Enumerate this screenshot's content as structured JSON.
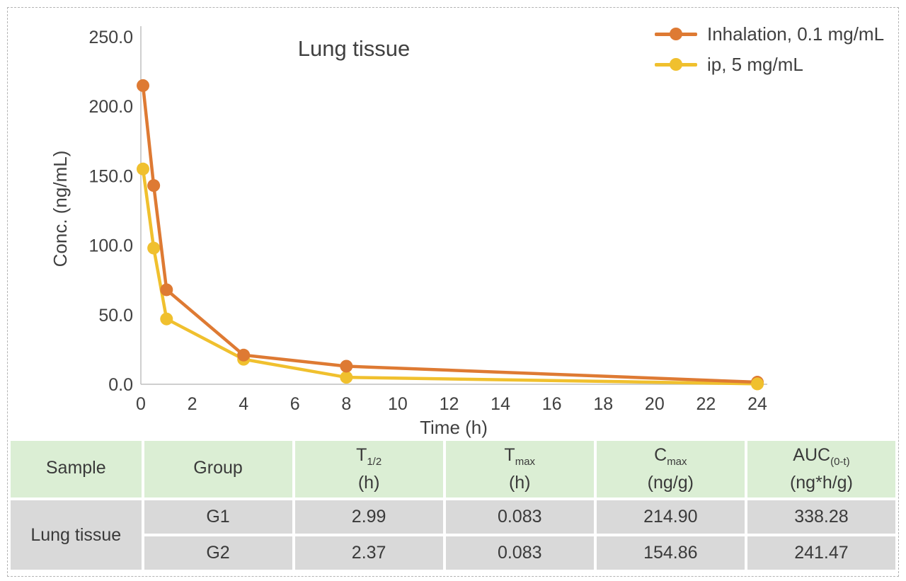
{
  "frame": {
    "border_color": "#b3b3b3"
  },
  "chart": {
    "axis_color": "#bfbfbf",
    "text_color": "#404040",
    "x_ticks": [
      0,
      2,
      4,
      6,
      8,
      10,
      12,
      14,
      16,
      18,
      20,
      22,
      24
    ],
    "y_ticks": [
      {
        "value": 0,
        "label": "0.0"
      },
      {
        "value": 50,
        "label": "50.0"
      },
      {
        "value": 100,
        "label": "100.0"
      },
      {
        "value": 150,
        "label": "150.0"
      },
      {
        "value": 200,
        "label": "200.0"
      },
      {
        "value": 250,
        "label": "250.0"
      }
    ]
  },
  "chart_data": {
    "type": "line",
    "title": "Lung tissue",
    "xlabel": "Time (h)",
    "ylabel": "Conc. (ng/mL)",
    "x": [
      0.083,
      0.5,
      1,
      4,
      8,
      24
    ],
    "series": [
      {
        "name": "Inhalation, 0.1 mg/mL",
        "color": "#de7a33",
        "values": [
          214.9,
          143,
          68,
          21,
          13,
          1.5
        ]
      },
      {
        "name": "ip, 5 mg/mL",
        "color": "#f0c02e",
        "values": [
          154.9,
          98,
          47,
          18,
          5,
          0.3
        ]
      }
    ],
    "xlim": [
      0,
      24
    ],
    "ylim": [
      0,
      250
    ],
    "grid": false,
    "legend_position": "top-right"
  },
  "table": {
    "header_bg": "#dbeed4",
    "row_bg": "#d9d9d9",
    "headers": [
      {
        "base": "Sample",
        "sub": "",
        "unit": ""
      },
      {
        "base": "Group",
        "sub": "",
        "unit": ""
      },
      {
        "base": "T",
        "sub": "1/2",
        "unit": "(h)"
      },
      {
        "base": "T",
        "sub": "max",
        "unit": "(h)"
      },
      {
        "base": "C",
        "sub": "max",
        "unit": "(ng/g)"
      },
      {
        "base": "AUC",
        "sub": "(0-t)",
        "unit": "(ng*h/g)"
      }
    ],
    "sample_label": "Lung tissue",
    "rows": [
      {
        "cells": [
          "G1",
          "2.99",
          "0.083",
          "214.90",
          "338.28"
        ]
      },
      {
        "cells": [
          "G2",
          "2.37",
          "0.083",
          "154.86",
          "241.47"
        ]
      }
    ]
  }
}
